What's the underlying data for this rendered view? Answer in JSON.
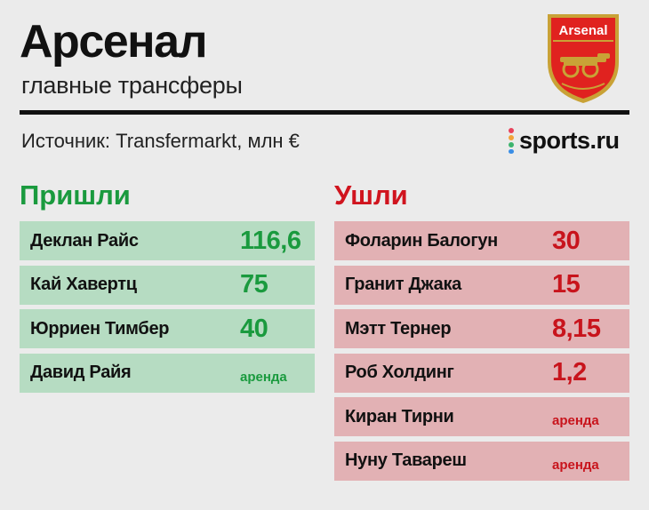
{
  "header": {
    "title": "Арсенал",
    "subtitle": "главные трансферы",
    "source": "Источник: Transfermarkt, млн €",
    "crest_text": "Arsenal",
    "brand": "sports.ru"
  },
  "colors": {
    "in_accent": "#1a9a3e",
    "out_accent": "#d0141e",
    "in_row_bg": "#b6dcc2",
    "out_row_bg": "#e2b1b4",
    "background": "#ebebeb",
    "crest_red": "#e0221f",
    "crest_gold": "#c9a236"
  },
  "icons": {
    "crest": "arsenal-crest-icon",
    "brand_dots": "sports-ru-dots-icon"
  },
  "incoming": {
    "heading": "Пришли",
    "players": [
      {
        "name": "Деклан Райс",
        "value": "116,6"
      },
      {
        "name": "Кай Хавертц",
        "value": "75"
      },
      {
        "name": "Юрриен Тимбер",
        "value": "40"
      },
      {
        "name": "Давид Райя",
        "value": "аренда"
      }
    ]
  },
  "outgoing": {
    "heading": "Ушли",
    "players": [
      {
        "name": "Фоларин Балогун",
        "value": "30"
      },
      {
        "name": "Гранит Джака",
        "value": "15"
      },
      {
        "name": "Мэтт Тернер",
        "value": "8,15"
      },
      {
        "name": "Роб Холдинг",
        "value": "1,2"
      },
      {
        "name": "Киран Тирни",
        "value": "аренда"
      },
      {
        "name": "Нуну Тавареш",
        "value": "аренда"
      }
    ]
  }
}
